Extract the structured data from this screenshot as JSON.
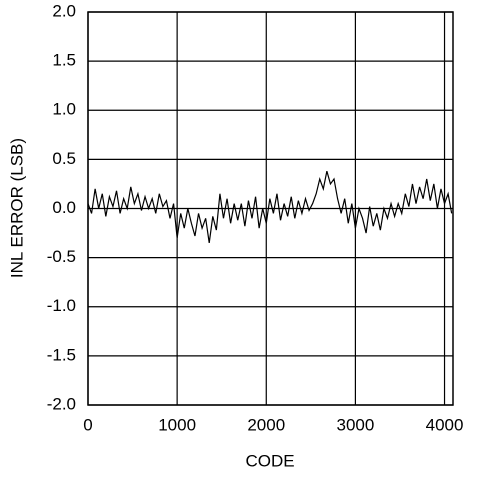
{
  "chart_data": {
    "type": "line",
    "x_label": "CODE",
    "y_label": "INL ERROR (LSB)",
    "x": [
      0,
      40,
      80,
      120,
      160,
      200,
      240,
      280,
      320,
      360,
      400,
      440,
      480,
      520,
      560,
      600,
      640,
      680,
      720,
      760,
      800,
      840,
      880,
      920,
      960,
      1000,
      1040,
      1080,
      1120,
      1160,
      1200,
      1240,
      1280,
      1320,
      1360,
      1400,
      1440,
      1480,
      1520,
      1560,
      1600,
      1640,
      1680,
      1720,
      1760,
      1800,
      1840,
      1880,
      1920,
      1960,
      2000,
      2040,
      2080,
      2120,
      2160,
      2200,
      2240,
      2280,
      2320,
      2360,
      2400,
      2440,
      2480,
      2520,
      2560,
      2600,
      2640,
      2680,
      2720,
      2760,
      2800,
      2840,
      2880,
      2920,
      2960,
      3000,
      3040,
      3080,
      3120,
      3160,
      3200,
      3240,
      3280,
      3320,
      3360,
      3400,
      3440,
      3480,
      3520,
      3560,
      3600,
      3640,
      3680,
      3720,
      3760,
      3800,
      3840,
      3880,
      3920,
      3960,
      4000,
      4040,
      4080
    ],
    "series": [
      {
        "name": "INL",
        "color": "#000000",
        "values": [
          0.05,
          -0.05,
          0.2,
          0.0,
          0.15,
          -0.08,
          0.12,
          0.02,
          0.18,
          -0.05,
          0.1,
          0.0,
          0.22,
          0.05,
          0.15,
          -0.02,
          0.12,
          0.0,
          0.1,
          -0.05,
          0.15,
          0.02,
          0.08,
          -0.1,
          0.05,
          -0.3,
          -0.05,
          -0.2,
          0.0,
          -0.15,
          -0.28,
          -0.05,
          -0.2,
          -0.1,
          -0.35,
          -0.08,
          -0.22,
          0.15,
          -0.1,
          0.1,
          -0.15,
          0.05,
          -0.12,
          0.05,
          -0.18,
          0.08,
          -0.1,
          0.12,
          -0.2,
          0.0,
          -0.15,
          0.1,
          -0.05,
          0.15,
          -0.12,
          0.05,
          -0.08,
          0.12,
          -0.1,
          0.08,
          -0.05,
          0.1,
          -0.02,
          0.05,
          0.15,
          0.3,
          0.2,
          0.38,
          0.25,
          0.3,
          0.1,
          -0.05,
          0.1,
          -0.15,
          0.05,
          -0.2,
          0.0,
          -0.1,
          -0.25,
          0.02,
          -0.18,
          -0.05,
          -0.22,
          0.0,
          -0.1,
          0.05,
          -0.08,
          0.05,
          -0.05,
          0.15,
          0.02,
          0.25,
          0.05,
          0.22,
          0.1,
          0.3,
          0.08,
          0.25,
          0.0,
          0.2,
          0.05,
          0.15,
          -0.05
        ]
      }
    ],
    "xlim": [
      0,
      4095
    ],
    "xticks": [
      0,
      1000,
      2000,
      3000,
      4000
    ],
    "ylim": [
      -2,
      2
    ],
    "yticks": [
      {
        "value": 2,
        "label": "2.0"
      },
      1.5,
      {
        "value": 1,
        "label": "1.0"
      },
      0.5,
      {
        "value": 0,
        "label": "0.0"
      },
      -0.5,
      {
        "value": -1,
        "label": "-1.0"
      },
      -1.5,
      {
        "value": -2,
        "label": "-2.0"
      }
    ],
    "grid": true
  }
}
